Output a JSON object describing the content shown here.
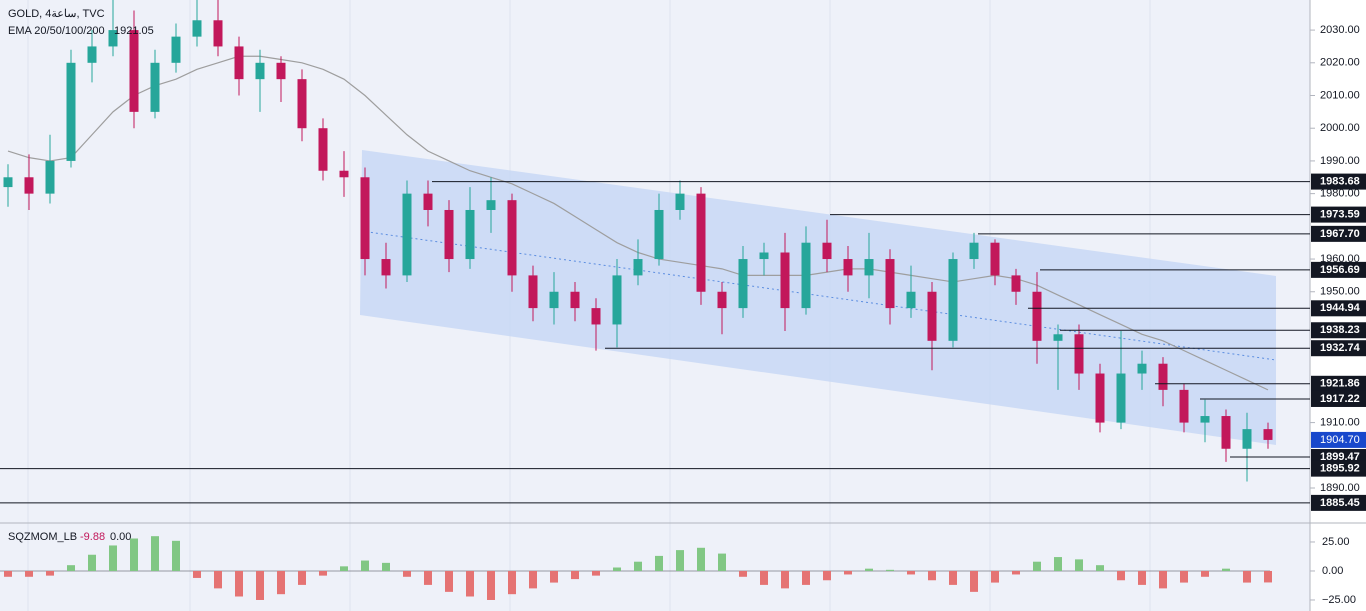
{
  "chart_data": {
    "type": "candlestick",
    "title": "GOLD, 4ساعة, TVC",
    "indicator": "EMA 20/50/100/200",
    "indicator_value": 1921.05,
    "up_color": "#26a69a",
    "down_color": "#c2185b",
    "ylim": [
      1879.3,
      2039.2
    ],
    "yticks": [
      {
        "value": 2030,
        "label": "2030.00"
      },
      {
        "value": 2020,
        "label": "2020.00"
      },
      {
        "value": 2010,
        "label": "2010.00"
      },
      {
        "value": 2000,
        "label": "2000.00"
      },
      {
        "value": 1990,
        "label": "1990.00"
      },
      {
        "value": 1980,
        "label": "1980.00"
      },
      {
        "value": 1960,
        "label": "1960.00"
      },
      {
        "value": 1950,
        "label": "1950.00"
      },
      {
        "value": 1910,
        "label": "1910.00"
      },
      {
        "value": 1890,
        "label": "1890.00"
      }
    ],
    "open": [
      1982,
      1985,
      1980,
      1990,
      2020,
      2025,
      2030,
      2005,
      2020,
      2028,
      2033,
      2025,
      2015,
      2020,
      2015,
      2000,
      1987,
      1985,
      1960,
      1955,
      1980,
      1975,
      1960,
      1975,
      1978,
      1955,
      1945,
      1950,
      1945,
      1940,
      1955,
      1960,
      1975,
      1980,
      1950,
      1945,
      1960,
      1962,
      1945,
      1965,
      1960,
      1955,
      1960,
      1945,
      1950,
      1935,
      1960,
      1965,
      1955,
      1950,
      1935,
      1937,
      1925,
      1910,
      1925,
      1928,
      1920,
      1910,
      1912,
      1902,
      1908
    ],
    "high": [
      1989,
      1992,
      1998,
      2024,
      2030,
      2040,
      2036,
      2024,
      2032,
      2040,
      2040,
      2028,
      2024,
      2022,
      2018,
      2003,
      1993,
      1988,
      1965,
      1984,
      1984,
      1978,
      1982,
      1985,
      1980,
      1958,
      1956,
      1953,
      1948,
      1960,
      1966,
      1980,
      1984,
      1982,
      1953,
      1964,
      1965,
      1968,
      1970,
      1972,
      1964,
      1968,
      1963,
      1958,
      1953,
      1962,
      1968,
      1966,
      1957,
      1956,
      1940,
      1940,
      1928,
      1938,
      1932,
      1930,
      1922,
      1917,
      1914,
      1913,
      1910
    ],
    "low": [
      1976,
      1975,
      1977,
      1988,
      2014,
      2022,
      2000,
      2003,
      2017,
      2025,
      2022,
      2010,
      2005,
      2008,
      1996,
      1984,
      1979,
      1955,
      1951,
      1953,
      1970,
      1956,
      1957,
      1968,
      1950,
      1941,
      1940,
      1941,
      1932,
      1933,
      1952,
      1958,
      1972,
      1946,
      1937,
      1942,
      1955,
      1938,
      1943,
      1956,
      1950,
      1948,
      1940,
      1942,
      1926,
      1933,
      1957,
      1952,
      1946,
      1928,
      1920,
      1920,
      1907,
      1908,
      1920,
      1915,
      1907,
      1904,
      1898,
      1892,
      1902
    ],
    "close": [
      1985,
      1980,
      1990,
      2020,
      2025,
      2030,
      2005,
      2020,
      2028,
      2033,
      2025,
      2015,
      2020,
      2015,
      2000,
      1987,
      1985,
      1960,
      1955,
      1980,
      1975,
      1960,
      1975,
      1978,
      1955,
      1945,
      1950,
      1945,
      1940,
      1955,
      1960,
      1975,
      1980,
      1950,
      1945,
      1960,
      1962,
      1945,
      1965,
      1960,
      1955,
      1960,
      1945,
      1950,
      1935,
      1960,
      1965,
      1955,
      1950,
      1935,
      1937,
      1925,
      1910,
      1925,
      1928,
      1920,
      1910,
      1912,
      1902,
      1908,
      1904.7
    ],
    "ema": [
      1993,
      1991,
      1990,
      1991,
      1998,
      2005,
      2010,
      2013,
      2015,
      2018,
      2020,
      2022,
      2022,
      2021,
      2020,
      2018,
      2015,
      2010,
      2004,
      1998,
      1993,
      1990,
      1987,
      1985,
      1983,
      1980,
      1977,
      1973,
      1969,
      1965,
      1962,
      1960,
      1959,
      1958,
      1957,
      1955,
      1955,
      1955,
      1955,
      1956,
      1957,
      1957,
      1956,
      1955,
      1954,
      1953,
      1954,
      1955,
      1954,
      1952,
      1949,
      1946,
      1943,
      1940,
      1937,
      1935,
      1932,
      1929,
      1926,
      1923,
      1920
    ],
    "ema_color": "#9e9e9e",
    "levels": [
      1983.68,
      1973.59,
      {
        "value": 1967.7,
        "label": "1967.70"
      },
      1956.69,
      1944.94,
      1938.23,
      1932.74,
      1921.86,
      1917.22,
      1899.47,
      1895.92,
      1885.45
    ],
    "last_price": {
      "value": 1904.7,
      "label": "1904.70"
    },
    "oscillator": {
      "name": "SQZMOM_LB",
      "value": -9.88,
      "zero": {
        "value": 0,
        "label": "0.00"
      },
      "ylim": [
        -34.5,
        40.5
      ],
      "yticks": [
        {
          "value": 25,
          "label": "25.00"
        },
        {
          "value": 0,
          "label": "0.00"
        },
        {
          "value": -25,
          "label": "−25.00"
        }
      ],
      "pos_color": "#81c784",
      "neg_color": "#e57373",
      "values": [
        -5,
        -5,
        -4,
        5,
        14,
        22,
        28,
        30,
        26,
        -6,
        -15,
        -22,
        -25,
        -20,
        -12,
        -4,
        4,
        9,
        7,
        -5,
        -12,
        -18,
        -22,
        -25,
        -20,
        -15,
        -10,
        -7,
        -4,
        3,
        8,
        13,
        18,
        20,
        15,
        -5,
        -12,
        -15,
        -12,
        -8,
        -3,
        2,
        1,
        -3,
        -8,
        -12,
        -18,
        -10,
        -3,
        8,
        12,
        10,
        5,
        -8,
        -12,
        -15,
        -10,
        -5,
        2,
        -10,
        -9.88
      ]
    }
  }
}
